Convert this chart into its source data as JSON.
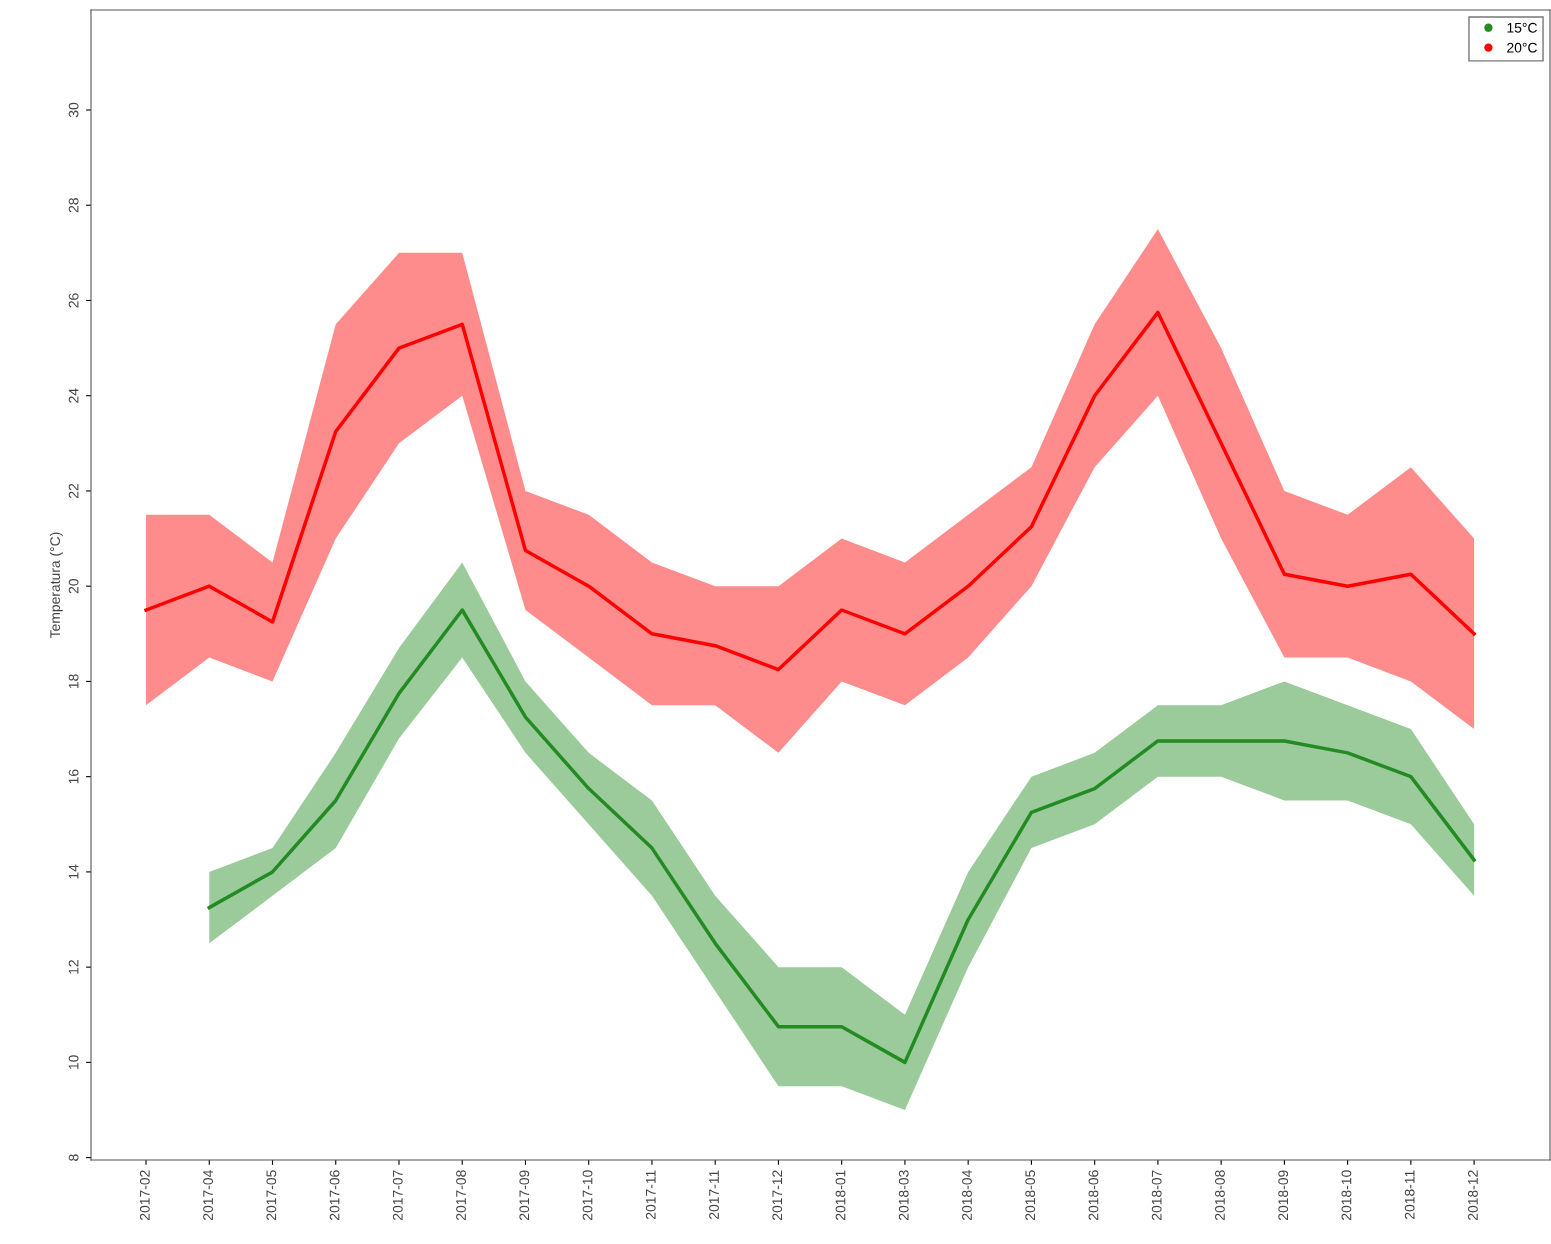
{
  "chart_data": {
    "type": "line",
    "ylabel": "Temperatura (°C)",
    "categories": [
      "2017-02",
      "2017-04",
      "2017-05",
      "2017-06",
      "2017-07",
      "2017-08",
      "2017-09",
      "2017-10",
      "2017-11",
      "2017-11",
      "2017-12",
      "2018-01",
      "2018-03",
      "2018-04",
      "2018-05",
      "2018-06",
      "2018-07",
      "2018-08",
      "2018-09",
      "2018-10",
      "2018-11",
      "2018-12"
    ],
    "ylim": [
      7.95,
      32.1
    ],
    "yticks": [
      8,
      10,
      12,
      14,
      16,
      18,
      20,
      22,
      24,
      26,
      28,
      30
    ],
    "grid": false,
    "legend": "top right",
    "series": [
      {
        "name": "15°C",
        "color": "#228b22",
        "values": [
          null,
          13.25,
          14,
          15.5,
          17.75,
          19.5,
          17.25,
          15.75,
          14.5,
          12.5,
          10.75,
          10.75,
          10,
          13,
          15.25,
          15.75,
          16.75,
          16.75,
          16.75,
          16.5,
          16,
          14.25
        ],
        "lower": [
          null,
          12.5,
          13.5,
          14.5,
          16.8,
          18.5,
          16.5,
          15,
          13.5,
          11.5,
          9.5,
          9.5,
          9,
          12,
          14.5,
          15,
          16,
          16,
          15.5,
          15.5,
          15,
          13.5
        ],
        "upper": [
          null,
          14,
          14.5,
          16.5,
          18.7,
          20.5,
          18,
          16.5,
          15.5,
          13.5,
          12,
          12,
          11,
          14,
          16,
          16.5,
          17.5,
          17.5,
          18,
          17.5,
          17,
          15
        ]
      },
      {
        "name": "20°C",
        "color": "#ff0000",
        "values": [
          19.5,
          20,
          19.25,
          23.25,
          25,
          25.5,
          20.75,
          20,
          19,
          18.75,
          18.25,
          19.5,
          19,
          20,
          21.25,
          24,
          25.75,
          23,
          20.25,
          20,
          20.25,
          19
        ],
        "lower": [
          17.5,
          18.5,
          18,
          21,
          23,
          24,
          19.5,
          18.5,
          17.5,
          17.5,
          16.5,
          18,
          17.5,
          18.5,
          20,
          22.5,
          24,
          21,
          18.5,
          18.5,
          18,
          17
        ],
        "upper": [
          21.5,
          21.5,
          20.5,
          25.5,
          27,
          27,
          22,
          21.5,
          20.5,
          20,
          20,
          21,
          20.5,
          21.5,
          22.5,
          25.5,
          27.5,
          25,
          22,
          21.5,
          22.5,
          21
        ]
      }
    ]
  }
}
